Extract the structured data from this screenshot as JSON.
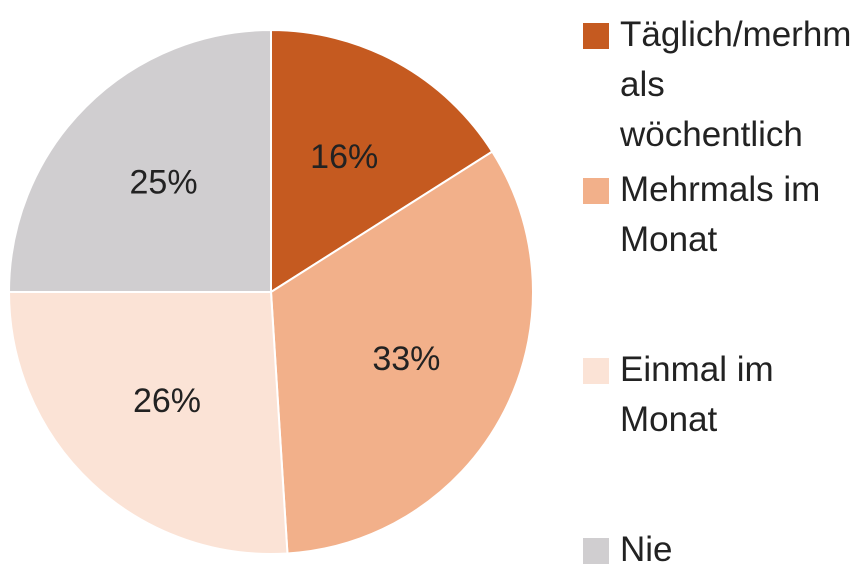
{
  "chart_data": {
    "type": "pie",
    "categories": [
      "Täglich/merhmals wöchentlich",
      "Mehrmals im Monat",
      "Einmal im Monat",
      "Nie"
    ],
    "values": [
      16,
      33,
      26,
      25
    ],
    "value_labels": [
      "16%",
      "33%",
      "26%",
      "25%"
    ],
    "colors": [
      "#c55a20",
      "#f2b08a",
      "#fbe3d6",
      "#d0ced0"
    ],
    "legend": "right"
  }
}
